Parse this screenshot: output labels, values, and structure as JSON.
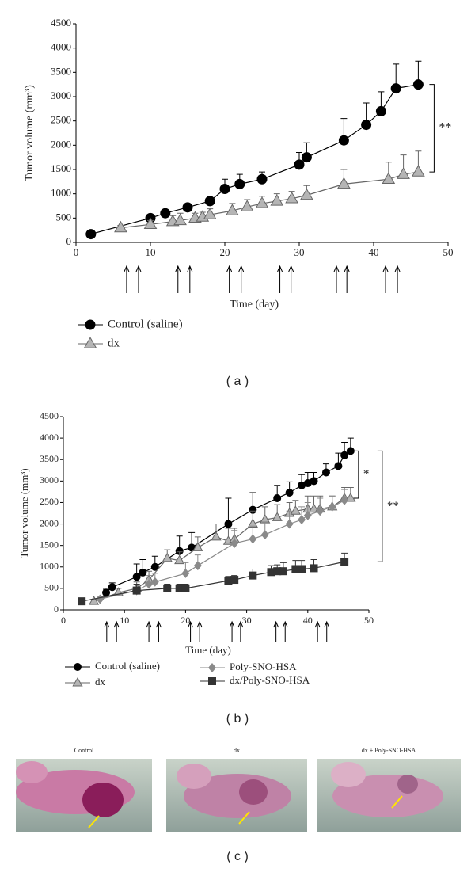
{
  "chart_data": [
    {
      "type": "line",
      "panel_label": "( a )",
      "x_label": "Time (day)",
      "y_label": "Tumor volume (mm³)",
      "xlim": [
        0,
        50
      ],
      "xticks": [
        0,
        10,
        20,
        30,
        40,
        50
      ],
      "ylim": [
        0,
        4500
      ],
      "yticks": [
        0,
        500,
        1000,
        1500,
        2000,
        2500,
        3000,
        3500,
        4000,
        4500
      ],
      "dose_days": [
        6.8,
        8.4,
        13.7,
        15.3,
        20.6,
        22.2,
        27.4,
        28.9,
        35,
        36.4,
        41.6,
        43.2
      ],
      "annotations": [
        "**"
      ],
      "series": [
        {
          "name": "Control (saline)",
          "marker": "circle",
          "color": "#000000",
          "x": [
            2,
            10,
            12,
            15,
            18,
            20,
            22,
            25,
            30,
            31,
            36,
            39,
            41,
            43,
            46
          ],
          "values": [
            170,
            500,
            600,
            720,
            850,
            1100,
            1200,
            1300,
            1600,
            1750,
            2100,
            2420,
            2700,
            3170,
            3250
          ],
          "errors": [
            0,
            50,
            50,
            60,
            100,
            200,
            200,
            150,
            250,
            300,
            450,
            450,
            400,
            500,
            480
          ]
        },
        {
          "name": "dx",
          "marker": "triangle",
          "color": "#b5b5b5",
          "x": [
            6,
            10,
            13,
            14,
            16,
            17,
            18,
            21,
            23,
            25,
            27,
            29,
            31,
            36,
            42,
            44,
            46
          ],
          "values": [
            300,
            370,
            430,
            450,
            500,
            520,
            570,
            650,
            730,
            800,
            850,
            900,
            970,
            1200,
            1300,
            1400,
            1450
          ],
          "errors": [
            50,
            80,
            120,
            150,
            100,
            100,
            120,
            150,
            150,
            150,
            150,
            150,
            200,
            300,
            350,
            400,
            430
          ]
        }
      ]
    },
    {
      "type": "line",
      "panel_label": "( b )",
      "x_label": "Time (day)",
      "y_label": "Tumor volume (mm³)",
      "xlim": [
        0,
        50
      ],
      "xticks": [
        0,
        10,
        20,
        30,
        40,
        50
      ],
      "ylim": [
        0,
        4500
      ],
      "yticks": [
        0,
        500,
        1000,
        1500,
        2000,
        2500,
        3000,
        3500,
        4000,
        4500
      ],
      "dose_days": [
        7.1,
        8.7,
        14,
        15.6,
        20.8,
        22.3,
        27.6,
        29,
        34.8,
        36.3,
        41.6,
        43.1
      ],
      "annotations": [
        "*",
        "**"
      ],
      "series": [
        {
          "name": "Control (saline)",
          "marker": "circle",
          "color": "#000000",
          "x": [
            7,
            8,
            12,
            13,
            15,
            19,
            21,
            27,
            31,
            35,
            37,
            39,
            40,
            41,
            43,
            45,
            46,
            47
          ],
          "values": [
            400,
            530,
            770,
            870,
            1000,
            1370,
            1450,
            2000,
            2330,
            2600,
            2730,
            2900,
            2950,
            3000,
            3200,
            3350,
            3600,
            3700
          ],
          "errors": [
            80,
            100,
            300,
            300,
            250,
            350,
            350,
            600,
            400,
            300,
            250,
            250,
            250,
            200,
            200,
            300,
            300,
            300
          ]
        },
        {
          "name": "dx",
          "marker": "triangle",
          "color": "#b5b5b5",
          "x": [
            5,
            9,
            12,
            14,
            17,
            19,
            22,
            25,
            27,
            28,
            31,
            33,
            35,
            37,
            38,
            40,
            41,
            42,
            44,
            46,
            47
          ],
          "values": [
            200,
            400,
            500,
            700,
            1200,
            1150,
            1450,
            1700,
            1600,
            1650,
            2000,
            2100,
            2150,
            2250,
            2300,
            2350,
            2350,
            2350,
            2400,
            2600,
            2600
          ],
          "errors": [
            50,
            100,
            150,
            200,
            200,
            200,
            250,
            300,
            300,
            250,
            300,
            300,
            300,
            250,
            250,
            300,
            300,
            300,
            250,
            250,
            250
          ]
        },
        {
          "name": "Poly-SNO-HSA",
          "marker": "diamond",
          "color": "#8a8a8a",
          "x": [
            6,
            12,
            14,
            15,
            20,
            22,
            28,
            31,
            33,
            37,
            39,
            40,
            42,
            44,
            46
          ],
          "values": [
            250,
            450,
            600,
            650,
            850,
            1030,
            1550,
            1650,
            1750,
            2000,
            2100,
            2200,
            2300,
            2400,
            2550
          ],
          "errors": [
            60,
            150,
            200,
            200,
            250,
            250,
            300,
            300,
            300,
            300,
            300,
            300,
            300,
            250,
            250
          ]
        },
        {
          "name": "dx/Poly-SNO-HSA",
          "marker": "square",
          "color": "#333333",
          "x": [
            3,
            12,
            17,
            19,
            20,
            27,
            28,
            31,
            34,
            35,
            36,
            38,
            39,
            41,
            46
          ],
          "values": [
            200,
            450,
            500,
            500,
            500,
            680,
            700,
            800,
            880,
            900,
            900,
            950,
            950,
            970,
            1120
          ],
          "errors": [
            0,
            150,
            100,
            100,
            100,
            100,
            100,
            150,
            150,
            150,
            200,
            200,
            200,
            200,
            200
          ]
        }
      ]
    }
  ],
  "photos": {
    "panel_label": "( c )",
    "captions": [
      "Control",
      "dx",
      "dx + Poly-SNO-HSA"
    ]
  }
}
